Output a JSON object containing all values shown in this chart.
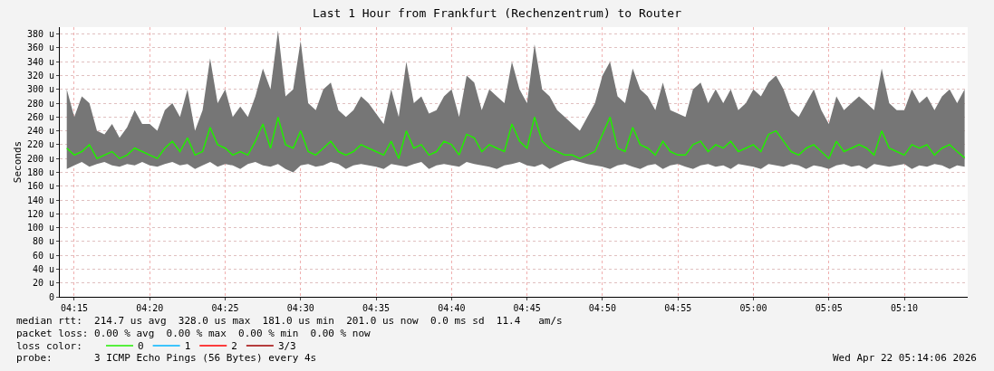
{
  "chart_data": {
    "type": "line",
    "title": "Last 1 Hour from Frankfurt (Rechenzentrum) to Router",
    "ylabel": "Seconds",
    "x": [
      4.2417,
      4.25,
      4.2583,
      4.2667,
      4.275,
      4.2833,
      4.2917,
      4.3,
      4.3083,
      4.3167,
      4.325,
      4.3333,
      4.3417,
      4.35,
      4.3583,
      4.3667,
      4.375,
      4.3833,
      4.3917,
      4.4,
      4.4083,
      4.4167,
      4.425,
      4.4333,
      4.4417,
      4.45,
      4.4583,
      4.4667,
      4.475,
      4.4833,
      4.4917,
      4.5,
      4.5083,
      4.5167,
      4.525,
      4.5333,
      4.5417,
      4.55,
      4.5583,
      4.5667,
      4.575,
      4.5833,
      4.5917,
      4.6,
      4.6083,
      4.6167,
      4.625,
      4.6333,
      4.6417,
      4.65,
      4.6583,
      4.6667,
      4.675,
      4.6833,
      4.6917,
      4.7,
      4.7083,
      4.7167,
      4.725,
      4.7333,
      4.7417,
      4.75,
      4.7583,
      4.7667,
      4.775,
      4.7833,
      4.7917,
      4.8,
      4.8083,
      4.8167,
      4.825,
      4.8333,
      4.8417,
      4.85,
      4.8583,
      4.8667,
      4.875,
      4.8833,
      4.8917,
      4.9,
      4.9083,
      4.9167,
      4.925,
      4.9333,
      4.9417,
      4.95,
      4.9583,
      4.9667,
      4.975,
      4.9833,
      4.9917,
      5.0,
      5.0083,
      5.0167,
      5.025,
      5.0333,
      5.0417,
      5.05,
      5.0583,
      5.0667,
      5.075,
      5.0833,
      5.0917,
      5.1,
      5.1083,
      5.1167,
      5.125,
      5.1333,
      5.1417,
      5.15,
      5.1583,
      5.1667,
      5.175,
      5.1833,
      5.1917,
      5.2,
      5.2083,
      5.2167,
      5.225,
      5.2333
    ],
    "series": [
      {
        "name": "0",
        "color": "#22ee00",
        "values": [
          215,
          205,
          210,
          220,
          200,
          205,
          210,
          200,
          205,
          215,
          210,
          205,
          200,
          215,
          225,
          210,
          230,
          205,
          210,
          245,
          220,
          215,
          205,
          210,
          205,
          225,
          250,
          215,
          260,
          220,
          215,
          240,
          210,
          205,
          215,
          225,
          210,
          205,
          210,
          220,
          215,
          210,
          205,
          225,
          200,
          240,
          215,
          220,
          205,
          210,
          225,
          220,
          205,
          235,
          230,
          210,
          220,
          215,
          210,
          250,
          225,
          215,
          260,
          225,
          215,
          210,
          205,
          205,
          200,
          205,
          210,
          235,
          260,
          215,
          210,
          245,
          220,
          215,
          205,
          225,
          210,
          205,
          205,
          220,
          225,
          210,
          220,
          215,
          225,
          210,
          215,
          220,
          210,
          235,
          240,
          225,
          210,
          205,
          215,
          220,
          210,
          200,
          225,
          210,
          215,
          220,
          215,
          205,
          240,
          215,
          210,
          205,
          220,
          215,
          220,
          205,
          215,
          220,
          210,
          201
        ],
        "lower": [
          185,
          190,
          195,
          188,
          192,
          195,
          190,
          188,
          192,
          190,
          195,
          190,
          188,
          192,
          195,
          190,
          192,
          185,
          190,
          195,
          188,
          192,
          190,
          185,
          192,
          195,
          190,
          188,
          192,
          185,
          180,
          190,
          192,
          188,
          190,
          195,
          192,
          185,
          190,
          192,
          190,
          188,
          185,
          192,
          190,
          188,
          192,
          195,
          185,
          190,
          192,
          190,
          188,
          195,
          192,
          190,
          188,
          185,
          190,
          192,
          195,
          190,
          188,
          192,
          185,
          190,
          195,
          198,
          195,
          192,
          190,
          188,
          185,
          190,
          192,
          188,
          185,
          190,
          192,
          185,
          190,
          192,
          188,
          185,
          190,
          192,
          188,
          190,
          185,
          192,
          190,
          188,
          185,
          192,
          190,
          188,
          192,
          190,
          185,
          190,
          188,
          185,
          190,
          192,
          188,
          190,
          185,
          192,
          190,
          188,
          190,
          192,
          185,
          190,
          188,
          192,
          190,
          185,
          190,
          188
        ],
        "upper": [
          300,
          260,
          290,
          280,
          240,
          235,
          250,
          230,
          245,
          270,
          250,
          250,
          240,
          270,
          280,
          260,
          300,
          240,
          270,
          345,
          280,
          300,
          260,
          275,
          260,
          290,
          330,
          300,
          385,
          290,
          300,
          370,
          280,
          270,
          300,
          310,
          270,
          260,
          270,
          290,
          280,
          265,
          250,
          300,
          260,
          340,
          280,
          290,
          265,
          270,
          290,
          300,
          260,
          320,
          310,
          270,
          300,
          290,
          280,
          340,
          300,
          280,
          365,
          300,
          290,
          270,
          260,
          250,
          240,
          260,
          280,
          320,
          340,
          290,
          280,
          330,
          300,
          290,
          270,
          310,
          270,
          265,
          260,
          300,
          310,
          280,
          300,
          280,
          300,
          270,
          280,
          300,
          290,
          310,
          320,
          300,
          270,
          260,
          280,
          300,
          270,
          250,
          290,
          270,
          280,
          290,
          280,
          270,
          330,
          280,
          270,
          270,
          300,
          280,
          290,
          270,
          290,
          300,
          280,
          300
        ]
      },
      {
        "name": "1",
        "color": "#00b4ff",
        "values": [
          null,
          null,
          null,
          null,
          null,
          null,
          null,
          null,
          null,
          null,
          null,
          null,
          null,
          null,
          null,
          null,
          null,
          null,
          null,
          null,
          null,
          null,
          null,
          null,
          null,
          null,
          null,
          null,
          null,
          null,
          null,
          null,
          null,
          null,
          null,
          null,
          null,
          null,
          null,
          null,
          null,
          null,
          null,
          null,
          null,
          null,
          null,
          null,
          null,
          null,
          null,
          null,
          null,
          null,
          null,
          null,
          null,
          null,
          null,
          null,
          null,
          null,
          null,
          null,
          null,
          null,
          null,
          null,
          null,
          null,
          null,
          null,
          null,
          null,
          null,
          null,
          null,
          null,
          null,
          null,
          null,
          null,
          null,
          null,
          null,
          null,
          null,
          null,
          null,
          null,
          null,
          null,
          null,
          null,
          null,
          null,
          null,
          null,
          null,
          null,
          null,
          null,
          null,
          null,
          null,
          null,
          null,
          null,
          null,
          null,
          null,
          null,
          null,
          null,
          null,
          null,
          null,
          null,
          null,
          null
        ]
      },
      {
        "name": "2",
        "color": "#ff0000",
        "values": [
          null,
          null,
          null,
          null,
          null,
          null,
          null,
          null,
          null,
          null,
          null,
          null,
          null,
          null,
          null,
          null,
          null,
          null,
          null,
          null,
          null,
          null,
          null,
          null,
          null,
          null,
          null,
          null,
          null,
          null,
          null,
          null,
          null,
          null,
          null,
          null,
          null,
          null,
          null,
          null,
          null,
          null,
          null,
          null,
          null,
          null,
          null,
          null,
          null,
          null,
          null,
          null,
          null,
          null,
          null,
          null,
          null,
          null,
          null,
          null,
          null,
          null,
          null,
          null,
          null,
          null,
          null,
          null,
          null,
          null,
          null,
          null,
          null,
          null,
          null,
          null,
          null,
          null,
          null,
          null,
          null,
          null,
          null,
          null,
          null,
          null,
          null,
          null,
          null,
          null,
          null,
          null,
          null,
          null,
          null,
          null,
          null,
          null,
          null,
          null,
          null,
          null,
          null,
          null,
          null,
          null,
          null,
          null,
          null,
          null,
          null,
          null,
          null,
          null,
          null,
          null,
          null,
          null,
          null,
          null
        ]
      },
      {
        "name": "3/3",
        "color": "#a00000",
        "values": [
          null,
          null,
          null,
          null,
          null,
          null,
          null,
          null,
          null,
          null,
          null,
          null,
          null,
          null,
          null,
          null,
          null,
          null,
          null,
          null,
          null,
          null,
          null,
          null,
          null,
          null,
          null,
          null,
          null,
          null,
          null,
          null,
          null,
          null,
          null,
          null,
          null,
          null,
          null,
          null,
          null,
          null,
          null,
          null,
          null,
          null,
          null,
          null,
          null,
          null,
          null,
          null,
          null,
          null,
          null,
          null,
          null,
          null,
          null,
          null,
          null,
          null,
          null,
          null,
          null,
          null,
          null,
          null,
          null,
          null,
          null,
          null,
          null,
          null,
          null,
          null,
          null,
          null,
          null,
          null,
          null,
          null,
          null,
          null,
          null,
          null,
          null,
          null,
          null,
          null,
          null,
          null,
          null,
          null,
          null,
          null,
          null,
          null,
          null,
          null,
          null,
          null,
          null,
          null,
          null,
          null,
          null,
          null,
          null,
          null,
          null,
          null,
          null,
          null,
          null,
          null,
          null,
          null,
          null,
          null
        ]
      }
    ],
    "xlim": [
      4.234,
      5.2367
    ],
    "xticks": [
      {
        "value": 4.25,
        "label": "04:15"
      },
      {
        "value": 4.3333,
        "label": "04:20"
      },
      {
        "value": 4.4167,
        "label": "04:25"
      },
      {
        "value": 4.5,
        "label": "04:30"
      },
      {
        "value": 4.5833,
        "label": "04:35"
      },
      {
        "value": 4.6667,
        "label": "04:40"
      },
      {
        "value": 4.75,
        "label": "04:45"
      },
      {
        "value": 4.8333,
        "label": "04:50"
      },
      {
        "value": 4.9167,
        "label": "04:55"
      },
      {
        "value": 5.0,
        "label": "05:00"
      },
      {
        "value": 5.0833,
        "label": "05:05"
      },
      {
        "value": 5.1667,
        "label": "05:10"
      }
    ],
    "ylim": [
      0,
      390
    ],
    "yticks": [
      0,
      {
        "value": 20,
        "label": "20 u"
      },
      {
        "value": 40,
        "label": "40 u"
      },
      {
        "value": 60,
        "label": "60 u"
      },
      {
        "value": 80,
        "label": "80 u"
      },
      {
        "value": 100,
        "label": "100 u"
      },
      {
        "value": 120,
        "label": "120 u"
      },
      {
        "value": 140,
        "label": "140 u"
      },
      {
        "value": 160,
        "label": "160 u"
      },
      {
        "value": 180,
        "label": "180 u"
      },
      {
        "value": 200,
        "label": "200 u"
      },
      {
        "value": 220,
        "label": "220 u"
      },
      {
        "value": 240,
        "label": "240 u"
      },
      {
        "value": 260,
        "label": "260 u"
      },
      {
        "value": 280,
        "label": "280 u"
      },
      {
        "value": 300,
        "label": "300 u"
      },
      {
        "value": 320,
        "label": "320 u"
      },
      {
        "value": 340,
        "label": "340 u"
      },
      {
        "value": 360,
        "label": "360 u"
      },
      {
        "value": 380,
        "label": "380 u"
      }
    ],
    "grid": true,
    "legend": "bottom",
    "marker": "none",
    "line_style": "solid",
    "annotations": [
      "median rtt:  214.7 us avg  328.0 us max  181.0 us min  201.0 us now  0.0 ms sd  11.4   am/s",
      "packet loss: 0.00 % avg  0.00 % max  0.00 % min  0.00 % now",
      "loss color:",
      "probe:       3 ICMP Echo Pings (56 Bytes) every 4s",
      "Wed Apr 22 05:14:06 2026"
    ]
  }
}
